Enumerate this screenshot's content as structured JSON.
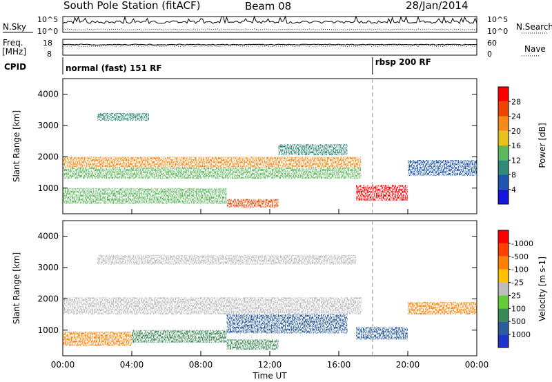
{
  "header": {
    "station": "South Pole Station (fitACF)",
    "beam": "Beam 08",
    "date": "28/Jan/2014"
  },
  "noise_panel": {
    "left_label": "N.Sky",
    "right_label": "N.Search",
    "left_ticks": [
      "10^5",
      "10^0"
    ],
    "right_ticks": [
      "10^5",
      "10^0"
    ]
  },
  "freq_panel": {
    "left_label_1": "Freq.",
    "left_label_2": "[MHz]",
    "right_label": "Nave",
    "left_ticks": [
      "18",
      "8"
    ],
    "right_ticks": [
      "60",
      "0"
    ]
  },
  "cpid_panel": {
    "label": "CPID",
    "mode_1": "normal (fast) 151 RF",
    "mode_2": "rbsp 200 RF",
    "mode_2_start_hour": 17.95
  },
  "chart_data": [
    {
      "type": "heatmap",
      "name": "power",
      "ylabel": "Slant Range [km]",
      "ylim": [
        180,
        4500
      ],
      "yticks": [
        1000,
        2000,
        3000,
        4000
      ],
      "xlim": [
        0,
        24
      ],
      "colorbar_label": "Power [dB]",
      "colorbar_ticks": [
        "4",
        "8",
        "12",
        "16",
        "20",
        "24",
        "28"
      ],
      "colorbar_colors": [
        "#1515e0",
        "#1e55b0",
        "#2f8a78",
        "#5cb85c",
        "#e8c21f",
        "#f58a18",
        "#ee4400",
        "#ff0000"
      ],
      "echo_regions": [
        {
          "t0": 0.0,
          "t1": 17.3,
          "r0": 1650,
          "r1": 2000,
          "power_db": 20
        },
        {
          "t0": 0.0,
          "t1": 17.3,
          "r0": 1300,
          "r1": 1650,
          "power_db": 12
        },
        {
          "t0": 0.0,
          "t1": 9.5,
          "r0": 500,
          "r1": 1000,
          "power_db": 12
        },
        {
          "t0": 9.5,
          "t1": 12.5,
          "r0": 380,
          "r1": 650,
          "power_db": 24
        },
        {
          "t0": 2.0,
          "t1": 5.0,
          "r0": 3150,
          "r1": 3400,
          "power_db": 8
        },
        {
          "t0": 12.5,
          "t1": 16.5,
          "r0": 2050,
          "r1": 2400,
          "power_db": 8
        },
        {
          "t0": 17.0,
          "t1": 20.0,
          "r0": 600,
          "r1": 1100,
          "power_db": 28
        },
        {
          "t0": 20.0,
          "t1": 24.0,
          "r0": 1400,
          "r1": 1900,
          "power_db": 4
        }
      ]
    },
    {
      "type": "heatmap",
      "name": "velocity",
      "ylabel": "Slant Range [km]",
      "ylim": [
        180,
        4500
      ],
      "yticks": [
        1000,
        2000,
        3000,
        4000
      ],
      "xlim": [
        0,
        24
      ],
      "xticks": [
        "00:00",
        "04:00",
        "08:00",
        "12:00",
        "16:00",
        "20:00",
        "00:00"
      ],
      "xlabel": "Time UT",
      "colorbar_label": "Velocity [m s-1]",
      "colorbar_ticks": [
        "1000",
        "500",
        "100",
        "25",
        "-25",
        "-100",
        "-500",
        "-1000"
      ],
      "colorbar_colors": [
        "#2233cc",
        "#2b5c9c",
        "#3a8a55",
        "#66cc33",
        "#bdbdbd",
        "#ffc000",
        "#ff8000",
        "#ff4000",
        "#ff0000"
      ],
      "echo_regions": [
        {
          "t0": 0.0,
          "t1": 17.3,
          "r0": 1500,
          "r1": 2050,
          "velocity": 0
        },
        {
          "t0": 0.0,
          "t1": 4.0,
          "r0": 500,
          "r1": 950,
          "velocity": -300
        },
        {
          "t0": 4.0,
          "t1": 9.5,
          "r0": 600,
          "r1": 1000,
          "velocity": 200
        },
        {
          "t0": 9.5,
          "t1": 12.5,
          "r0": 380,
          "r1": 700,
          "velocity": 200
        },
        {
          "t0": 9.5,
          "t1": 16.5,
          "r0": 900,
          "r1": 1500,
          "velocity": 600
        },
        {
          "t0": 17.0,
          "t1": 20.0,
          "r0": 700,
          "r1": 1100,
          "velocity": 800
        },
        {
          "t0": 2.0,
          "t1": 17.0,
          "r0": 3100,
          "r1": 3400,
          "velocity": 0
        },
        {
          "t0": 20.0,
          "t1": 24.0,
          "r0": 1500,
          "r1": 1900,
          "velocity": -100
        }
      ]
    }
  ]
}
